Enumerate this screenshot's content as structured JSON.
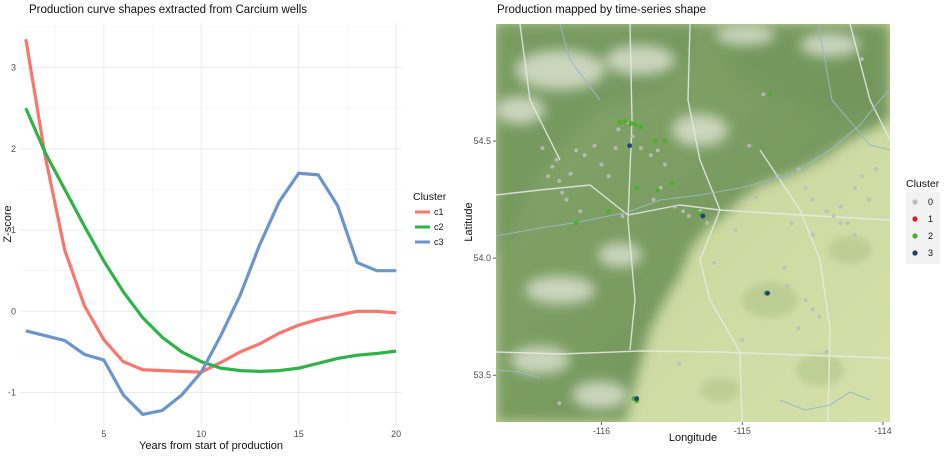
{
  "chart_data": [
    {
      "type": "line",
      "title": "Production curve shapes extracted from Carcium wells",
      "xlabel": "Years from start of production",
      "ylabel": "Z-score",
      "xlim": [
        0.7,
        20.3
      ],
      "ylim": [
        -1.4,
        3.55
      ],
      "x_ticks": [
        5,
        10,
        15,
        20
      ],
      "y_ticks": [
        -1,
        0,
        1,
        2,
        3
      ],
      "grid": true,
      "legend_title": "Cluster",
      "legend_position": "right",
      "x": [
        1,
        2,
        3,
        4,
        5,
        6,
        7,
        8,
        9,
        10,
        11,
        12,
        13,
        14,
        15,
        16,
        17,
        18,
        19,
        20
      ],
      "series": [
        {
          "name": "c1",
          "color": "#F8766D",
          "values": [
            3.35,
            1.9,
            0.75,
            0.07,
            -0.35,
            -0.62,
            -0.72,
            -0.73,
            -0.74,
            -0.75,
            -0.63,
            -0.5,
            -0.4,
            -0.27,
            -0.17,
            -0.1,
            -0.05,
            0.0,
            0.0,
            -0.02
          ]
        },
        {
          "name": "c2",
          "color": "#2DB34A",
          "values": [
            2.5,
            1.95,
            1.5,
            1.05,
            0.62,
            0.24,
            -0.08,
            -0.32,
            -0.5,
            -0.62,
            -0.7,
            -0.73,
            -0.74,
            -0.73,
            -0.7,
            -0.64,
            -0.58,
            -0.54,
            -0.52,
            -0.49
          ]
        },
        {
          "name": "c3",
          "color": "#6C94CF",
          "values": [
            -0.24,
            -0.3,
            -0.36,
            -0.53,
            -0.6,
            -1.03,
            -1.27,
            -1.22,
            -1.03,
            -0.75,
            -0.3,
            0.2,
            0.82,
            1.35,
            1.7,
            1.68,
            1.3,
            0.6,
            0.5,
            0.5
          ]
        }
      ]
    },
    {
      "type": "scatter",
      "title": "Production mapped by time-series shape",
      "xlabel": "Longitude",
      "ylabel": "Latitude",
      "xlim": [
        -116.75,
        -113.95
      ],
      "ylim": [
        53.3,
        55.0
      ],
      "x_ticks": [
        -116,
        -115,
        -114
      ],
      "y_ticks": [
        53.5,
        54.0,
        54.5
      ],
      "x_tick_labels": [
        "-116",
        "-115",
        "-114"
      ],
      "y_tick_labels": [
        "53.5",
        "54.0",
        "54.5"
      ],
      "legend_title": "Cluster",
      "legend_position": "right",
      "background": "terrain map",
      "clusters": [
        {
          "name": "0",
          "color": "#BDBDBD",
          "points": [
            [
              -116.42,
              54.47
            ],
            [
              -116.38,
              54.35
            ],
            [
              -116.35,
              54.39
            ],
            [
              -116.3,
              54.33
            ],
            [
              -116.28,
              54.28
            ],
            [
              -116.22,
              54.36
            ],
            [
              -116.18,
              54.46
            ],
            [
              -116.12,
              54.44
            ],
            [
              -116.05,
              54.48
            ],
            [
              -116.0,
              54.4
            ],
            [
              -115.95,
              54.35
            ],
            [
              -115.9,
              54.47
            ],
            [
              -115.88,
              54.55
            ],
            [
              -115.82,
              54.58
            ],
            [
              -115.78,
              54.52
            ],
            [
              -115.72,
              54.47
            ],
            [
              -115.65,
              54.44
            ],
            [
              -115.6,
              54.46
            ],
            [
              -115.55,
              54.4
            ],
            [
              -115.58,
              54.3
            ],
            [
              -115.63,
              54.25
            ],
            [
              -115.48,
              54.22
            ],
            [
              -115.42,
              54.2
            ],
            [
              -115.38,
              54.18
            ],
            [
              -115.3,
              54.2
            ],
            [
              -115.25,
              54.15
            ],
            [
              -115.0,
              54.24
            ],
            [
              -114.9,
              54.26
            ],
            [
              -114.85,
              54.3
            ],
            [
              -114.75,
              54.35
            ],
            [
              -114.6,
              54.38
            ],
            [
              -114.55,
              54.3
            ],
            [
              -114.5,
              54.25
            ],
            [
              -114.4,
              54.2
            ],
            [
              -114.35,
              54.18
            ],
            [
              -114.3,
              54.22
            ],
            [
              -114.2,
              54.3
            ],
            [
              -114.15,
              54.35
            ],
            [
              -114.05,
              54.38
            ],
            [
              -114.1,
              54.25
            ],
            [
              -114.25,
              54.15
            ],
            [
              -114.5,
              54.1
            ],
            [
              -114.7,
              53.96
            ],
            [
              -114.68,
              53.88
            ],
            [
              -114.55,
              53.82
            ],
            [
              -114.5,
              53.78
            ],
            [
              -114.45,
              53.75
            ],
            [
              -114.6,
              53.7
            ],
            [
              -114.85,
              53.85
            ],
            [
              -115.2,
              53.98
            ],
            [
              -115.0,
              53.65
            ],
            [
              -115.45,
              53.55
            ],
            [
              -115.75,
              53.4
            ],
            [
              -116.3,
              53.38
            ],
            [
              -114.85,
              54.7
            ],
            [
              -114.15,
              54.85
            ],
            [
              -116.15,
              54.2
            ],
            [
              -115.85,
              54.18
            ],
            [
              -114.3,
              54.15
            ],
            [
              -114.2,
              54.1
            ],
            [
              -114.4,
              53.6
            ],
            [
              -114.95,
              54.48
            ],
            [
              -114.65,
              54.15
            ],
            [
              -115.05,
              54.12
            ],
            [
              -116.32,
              54.42
            ],
            [
              -116.25,
              54.25
            ]
          ]
        },
        {
          "name": "1",
          "color": "#E41A1C",
          "points": []
        },
        {
          "name": "2",
          "color": "#4DAF2A",
          "points": [
            [
              -115.87,
              54.58
            ],
            [
              -115.83,
              54.585
            ],
            [
              -115.79,
              54.575
            ],
            [
              -115.76,
              54.57
            ],
            [
              -115.72,
              54.56
            ],
            [
              -115.62,
              54.5
            ],
            [
              -115.55,
              54.5
            ],
            [
              -115.6,
              54.29
            ],
            [
              -115.75,
              54.3
            ],
            [
              -115.95,
              54.2
            ],
            [
              -116.18,
              54.15
            ],
            [
              -115.5,
              54.32
            ],
            [
              -115.3,
              54.19
            ],
            [
              -114.83,
              53.85
            ],
            [
              -114.8,
              54.7
            ],
            [
              -115.75,
              53.39
            ],
            [
              -115.77,
              53.4
            ]
          ]
        },
        {
          "name": "3",
          "color": "#1F3B7A",
          "points": [
            [
              -115.8,
              54.48
            ],
            [
              -115.28,
              54.18
            ],
            [
              -114.82,
              53.85
            ],
            [
              -115.75,
              53.4
            ]
          ]
        }
      ]
    }
  ]
}
